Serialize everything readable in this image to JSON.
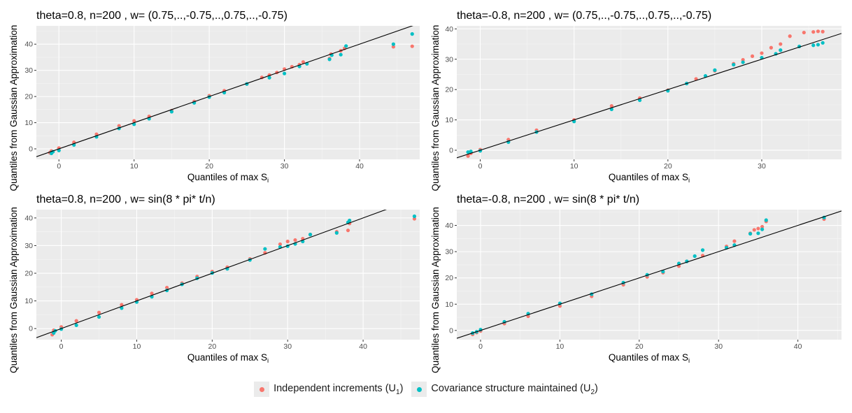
{
  "chart_data": [
    {
      "type": "scatter",
      "title": "theta=0.8, n=200 , w= (0.75,..,-0.75,..,0.75,..,-0.75)",
      "xlabel": "Quantiles of max S",
      "xlabel_sub": "i",
      "ylabel": "Quantiles from Gaussian Approximation",
      "xlim": [
        -3,
        48
      ],
      "ylim": [
        -4,
        47
      ],
      "xticks": [
        0,
        10,
        20,
        30,
        40
      ],
      "yticks": [
        0,
        10,
        20,
        30,
        40
      ],
      "grid": true,
      "reference_line": {
        "slope": 1,
        "intercept": 0
      },
      "series": [
        {
          "name": "Independent increments (U1)",
          "color": "#F8766D",
          "points": [
            [
              -1.2,
              -1.5
            ],
            [
              -1,
              -0.8
            ],
            [
              0,
              0.3
            ],
            [
              2,
              2.5
            ],
            [
              5,
              5.6
            ],
            [
              8,
              8.8
            ],
            [
              10,
              10.7
            ],
            [
              12,
              12.4
            ],
            [
              15,
              14.6
            ],
            [
              18,
              18.1
            ],
            [
              20,
              20.3
            ],
            [
              22,
              22.2
            ],
            [
              25,
              24.8
            ],
            [
              27,
              27.3
            ],
            [
              28,
              28.2
            ],
            [
              29,
              29.2
            ],
            [
              30,
              30.5
            ],
            [
              31,
              31.4
            ],
            [
              32,
              32.2
            ],
            [
              32.5,
              33.2
            ],
            [
              36,
              34.5
            ],
            [
              36.2,
              36.2
            ],
            [
              37.5,
              37.5
            ],
            [
              38,
              38.4
            ],
            [
              44.5,
              39
            ],
            [
              47,
              39.2
            ]
          ]
        },
        {
          "name": "Covariance structure maintained (U2)",
          "color": "#00BFC4",
          "points": [
            [
              -1,
              -1.7
            ],
            [
              -0.8,
              -1.1
            ],
            [
              0,
              -0.6
            ],
            [
              2,
              1.5
            ],
            [
              5,
              4.6
            ],
            [
              8,
              7.8
            ],
            [
              10,
              9.4
            ],
            [
              12,
              11.5
            ],
            [
              15,
              14.2
            ],
            [
              18,
              17.6
            ],
            [
              20,
              19.8
            ],
            [
              22,
              21.5
            ],
            [
              25,
              24.8
            ],
            [
              28,
              27.2
            ],
            [
              30,
              28.8
            ],
            [
              32,
              31.5
            ],
            [
              33,
              32.5
            ],
            [
              36,
              34.2
            ],
            [
              36.3,
              35.8
            ],
            [
              37.5,
              36
            ],
            [
              38.2,
              39.3
            ],
            [
              44.5,
              40
            ],
            [
              47,
              43.9
            ]
          ]
        }
      ]
    },
    {
      "type": "scatter",
      "title": "theta=-0.8, n=200 , w= (0.75,..,-0.75,..,0.75,..,-0.75)",
      "xlabel": "Quantiles of max S",
      "xlabel_sub": "i",
      "ylabel": "Quantiles from Gaussian Approximation",
      "xlim": [
        -2.5,
        38.5
      ],
      "ylim": [
        -3,
        41
      ],
      "xticks": [
        0,
        10,
        20,
        30
      ],
      "yticks": [
        0,
        10,
        20,
        30,
        40
      ],
      "grid": true,
      "reference_line": {
        "slope": 1,
        "intercept": 0
      },
      "series": [
        {
          "name": "Independent increments (U1)",
          "color": "#F8766D",
          "points": [
            [
              -1.3,
              -1.9
            ],
            [
              -1,
              -1
            ],
            [
              0,
              0.2
            ],
            [
              3,
              3.5
            ],
            [
              6,
              6.6
            ],
            [
              10,
              10
            ],
            [
              14,
              14.6
            ],
            [
              17,
              17.2
            ],
            [
              20,
              19.8
            ],
            [
              23,
              23.5
            ],
            [
              25,
              26.2
            ],
            [
              27,
              28.5
            ],
            [
              28,
              29.8
            ],
            [
              29,
              31
            ],
            [
              30,
              32
            ],
            [
              31,
              33.8
            ],
            [
              32,
              35
            ],
            [
              33,
              37.6
            ],
            [
              34.5,
              38.8
            ],
            [
              35.5,
              39
            ],
            [
              36,
              39.2
            ],
            [
              36.5,
              39.1
            ]
          ]
        },
        {
          "name": "Covariance structure maintained (U2)",
          "color": "#00BFC4",
          "points": [
            [
              -1.3,
              -0.6
            ],
            [
              -1,
              -0.4
            ],
            [
              0,
              -0.2
            ],
            [
              3,
              2.7
            ],
            [
              6,
              6
            ],
            [
              10,
              9.5
            ],
            [
              14,
              13.5
            ],
            [
              17,
              16.5
            ],
            [
              20,
              19.6
            ],
            [
              22,
              22
            ],
            [
              24,
              24.5
            ],
            [
              25,
              26.4
            ],
            [
              27,
              28.2
            ],
            [
              28,
              29
            ],
            [
              30,
              30.5
            ],
            [
              31.5,
              31.8
            ],
            [
              32,
              33
            ],
            [
              34,
              34.2
            ],
            [
              35.5,
              34.6
            ],
            [
              36,
              34.8
            ],
            [
              36.5,
              35.4
            ]
          ]
        }
      ]
    },
    {
      "type": "scatter",
      "title": "theta=0.8, n=200 , w= sin(8 * pi* t/n)",
      "xlabel": "Quantiles of max S",
      "xlabel_sub": "i",
      "ylabel": "Quantiles from Gaussian Approximation",
      "xlim": [
        -3.3,
        47.5
      ],
      "ylim": [
        -4,
        43
      ],
      "xticks": [
        0,
        10,
        20,
        30,
        40
      ],
      "yticks": [
        0,
        10,
        20,
        30,
        40
      ],
      "grid": true,
      "reference_line": {
        "slope": 1,
        "intercept": 0
      },
      "series": [
        {
          "name": "Independent increments (U1)",
          "color": "#F8766D",
          "points": [
            [
              -1.2,
              -2.2
            ],
            [
              -1,
              -0.6
            ],
            [
              0,
              0.6
            ],
            [
              2,
              2.8
            ],
            [
              5,
              5.8
            ],
            [
              8,
              8.6
            ],
            [
              10,
              10.4
            ],
            [
              12,
              12.7
            ],
            [
              14,
              14.8
            ],
            [
              16,
              16.4
            ],
            [
              18,
              18.8
            ],
            [
              20,
              20.6
            ],
            [
              22,
              22.2
            ],
            [
              25,
              25.2
            ],
            [
              27,
              27.4
            ],
            [
              29,
              30.5
            ],
            [
              30,
              31.5
            ],
            [
              31,
              32
            ],
            [
              32,
              32.5
            ],
            [
              33,
              34
            ],
            [
              36.5,
              35
            ],
            [
              38,
              35.5
            ],
            [
              38.2,
              38
            ],
            [
              46.8,
              39.7
            ]
          ]
        },
        {
          "name": "Covariance structure maintained (U2)",
          "color": "#00BFC4",
          "points": [
            [
              -1,
              -1.6
            ],
            [
              -0.8,
              -0.8
            ],
            [
              0,
              -0.2
            ],
            [
              2,
              1.2
            ],
            [
              5,
              4.2
            ],
            [
              8,
              7.4
            ],
            [
              10,
              9.6
            ],
            [
              12,
              11.5
            ],
            [
              14,
              13.8
            ],
            [
              16,
              16
            ],
            [
              18,
              18.2
            ],
            [
              20,
              20.1
            ],
            [
              22,
              21.6
            ],
            [
              25,
              24.8
            ],
            [
              27,
              28.8
            ],
            [
              29,
              29.5
            ],
            [
              30,
              29.8
            ],
            [
              31,
              30.6
            ],
            [
              32,
              31.5
            ],
            [
              33,
              34
            ],
            [
              36.5,
              34.6
            ],
            [
              38,
              38.4
            ],
            [
              38.2,
              39.1
            ],
            [
              46.8,
              40.6
            ]
          ]
        }
      ]
    },
    {
      "type": "scatter",
      "title": "theta=-0.8, n=200 , w= sin(8 * pi* t/n)",
      "xlabel": "Quantiles of max S",
      "xlabel_sub": "i",
      "ylabel": "Quantiles from Gaussian Approximation",
      "xlim": [
        -3,
        45.5
      ],
      "ylim": [
        -3.5,
        46
      ],
      "xticks": [
        0,
        10,
        20,
        30,
        40
      ],
      "yticks": [
        0,
        10,
        20,
        30,
        40
      ],
      "grid": true,
      "reference_line": {
        "slope": 1,
        "intercept": 0
      },
      "series": [
        {
          "name": "Independent increments (U1)",
          "color": "#F8766D",
          "points": [
            [
              -1,
              -1.5
            ],
            [
              -0.5,
              -0.8
            ],
            [
              0,
              -0.2
            ],
            [
              3,
              2.6
            ],
            [
              6,
              5.4
            ],
            [
              10,
              9.3
            ],
            [
              14,
              13
            ],
            [
              18,
              17.4
            ],
            [
              21,
              20.4
            ],
            [
              23,
              22
            ],
            [
              25,
              24.5
            ],
            [
              26,
              26.3
            ],
            [
              28,
              28.5
            ],
            [
              31,
              32
            ],
            [
              32,
              34
            ],
            [
              34,
              37
            ],
            [
              34.5,
              38.3
            ],
            [
              35,
              38.8
            ],
            [
              35.5,
              39.5
            ],
            [
              36,
              41.5
            ],
            [
              43.3,
              42.4
            ]
          ]
        },
        {
          "name": "Covariance structure maintained (U2)",
          "color": "#00BFC4",
          "points": [
            [
              -1,
              -1
            ],
            [
              -0.5,
              -0.5
            ],
            [
              0,
              0.3
            ],
            [
              3,
              3.3
            ],
            [
              6,
              6.4
            ],
            [
              10,
              10.3
            ],
            [
              14,
              13.8
            ],
            [
              18,
              18.2
            ],
            [
              21,
              21.2
            ],
            [
              23,
              22.4
            ],
            [
              25,
              25.5
            ],
            [
              26,
              26.3
            ],
            [
              27,
              28.3
            ],
            [
              28,
              30.6
            ],
            [
              31,
              31.5
            ],
            [
              32,
              32.5
            ],
            [
              34,
              36.8
            ],
            [
              35,
              37
            ],
            [
              35.5,
              38.5
            ],
            [
              36,
              42
            ],
            [
              43.3,
              43
            ]
          ]
        }
      ]
    }
  ],
  "legend": {
    "items": [
      {
        "label": "Independent increments (U",
        "sub": "1",
        "suffix": ")",
        "color": "#F8766D"
      },
      {
        "label": "Covariance structure maintained (U",
        "sub": "2",
        "suffix": ")",
        "color": "#00BFC4"
      }
    ]
  }
}
